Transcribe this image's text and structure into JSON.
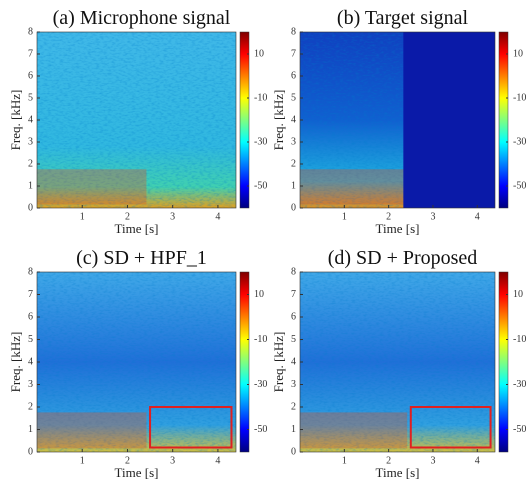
{
  "chart_data": [
    {
      "type": "spectrogram",
      "title": "(a) Microphone signal",
      "xlabel": "Time [s]",
      "ylabel": "Freq. [kHz]",
      "xlim": [
        0,
        4.4
      ],
      "xticks": [
        1,
        2,
        3,
        4
      ],
      "ylim": [
        0,
        8
      ],
      "yticks": [
        0,
        1,
        2,
        3,
        4,
        5,
        6,
        7,
        8
      ],
      "clim": [
        -60,
        20
      ],
      "cticks": [
        10,
        -10,
        -30,
        -50
      ]
    },
    {
      "type": "spectrogram",
      "title": "(b) Target signal",
      "xlabel": "Time [s]",
      "ylabel": "Freq. [kHz]",
      "xlim": [
        0,
        4.4
      ],
      "xticks": [
        1,
        2,
        3,
        4
      ],
      "ylim": [
        0,
        8
      ],
      "yticks": [
        0,
        1,
        2,
        3,
        4,
        5,
        6,
        7,
        8
      ],
      "clim": [
        -60,
        20
      ],
      "cticks": [
        10,
        -10,
        -30,
        -50
      ]
    },
    {
      "type": "spectrogram",
      "title": "(c) SD + HPF_1",
      "xlabel": "Time [s]",
      "ylabel": "Freq. [kHz]",
      "xlim": [
        0,
        4.4
      ],
      "xticks": [
        1,
        2,
        3,
        4
      ],
      "ylim": [
        0,
        8
      ],
      "yticks": [
        0,
        1,
        2,
        3,
        4,
        5,
        6,
        7,
        8
      ],
      "clim": [
        -60,
        20
      ],
      "cticks": [
        10,
        -10,
        -30,
        -50
      ]
    },
    {
      "type": "spectrogram",
      "title": "(d) SD + Proposed",
      "xlabel": "Time [s]",
      "ylabel": "Freq. [kHz]",
      "xlim": [
        0,
        4.4
      ],
      "xticks": [
        1,
        2,
        3,
        4
      ],
      "ylim": [
        0,
        8
      ],
      "yticks": [
        0,
        1,
        2,
        3,
        4,
        5,
        6,
        7,
        8
      ],
      "clim": [
        -60,
        20
      ],
      "cticks": [
        10,
        -10,
        -30,
        -50
      ]
    }
  ]
}
